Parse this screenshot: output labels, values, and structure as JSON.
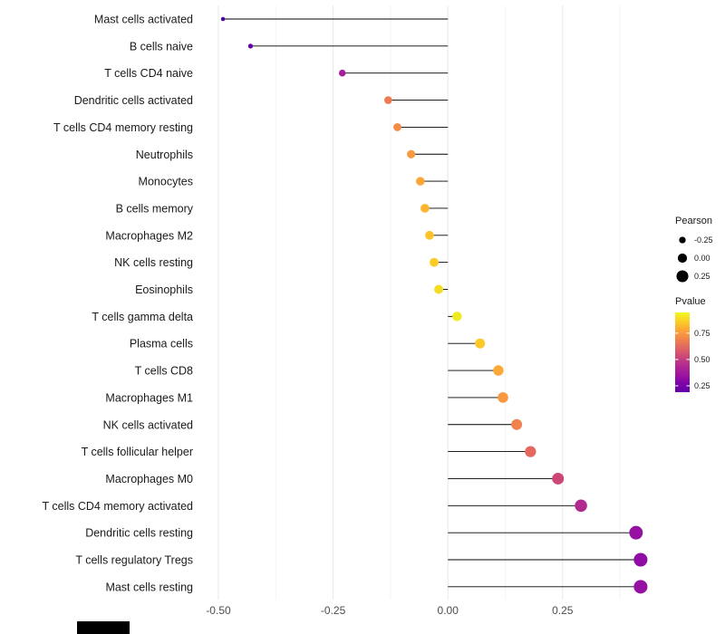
{
  "chart_data": {
    "type": "lollipop",
    "title": "",
    "xlabel": "",
    "ylabel": "",
    "x_axis": {
      "tick_labels": [
        "-0.50",
        "-0.25",
        "0.00",
        "0.25"
      ],
      "tick_values": [
        -0.5,
        -0.25,
        0.0,
        0.25
      ],
      "range": [
        -0.62,
        0.47
      ]
    },
    "grid": true,
    "rows": [
      {
        "label": "Mast cells activated",
        "pearson": -0.49,
        "color": "#4A03A0"
      },
      {
        "label": "B cells naive",
        "pearson": -0.43,
        "color": "#6100A7"
      },
      {
        "label": "T cells CD4 naive",
        "pearson": -0.23,
        "color": "#A62098"
      },
      {
        "label": "Dendritic cells activated",
        "pearson": -0.13,
        "color": "#EE7B51"
      },
      {
        "label": "T cells CD4 memory resting",
        "pearson": -0.11,
        "color": "#F28C46"
      },
      {
        "label": "Neutrophils",
        "pearson": -0.08,
        "color": "#F99A3E"
      },
      {
        "label": "Monocytes",
        "pearson": -0.06,
        "color": "#FCA636"
      },
      {
        "label": "B cells memory",
        "pearson": -0.05,
        "color": "#FDB52E"
      },
      {
        "label": "Macrophages M2",
        "pearson": -0.04,
        "color": "#FCC32A"
      },
      {
        "label": "NK cells resting",
        "pearson": -0.03,
        "color": "#FCCC26"
      },
      {
        "label": "Eosinophils",
        "pearson": -0.02,
        "color": "#F4DC24"
      },
      {
        "label": "T cells gamma delta",
        "pearson": 0.02,
        "color": "#F0EA21"
      },
      {
        "label": "Plasma cells",
        "pearson": 0.07,
        "color": "#FCC928"
      },
      {
        "label": "T cells CD8",
        "pearson": 0.11,
        "color": "#FCA937"
      },
      {
        "label": "Macrophages M1",
        "pearson": 0.12,
        "color": "#F9963F"
      },
      {
        "label": "NK cells activated",
        "pearson": 0.15,
        "color": "#F08250"
      },
      {
        "label": "T cells follicular helper",
        "pearson": 0.18,
        "color": "#E4685F"
      },
      {
        "label": "Macrophages M0",
        "pearson": 0.24,
        "color": "#CC4778"
      },
      {
        "label": "T cells CD4 memory activated",
        "pearson": 0.29,
        "color": "#B12A90"
      },
      {
        "label": "Dendritic cells resting",
        "pearson": 0.41,
        "color": "#9511A1"
      },
      {
        "label": "T cells regulatory  Tregs",
        "pearson": 0.42,
        "color": "#8F0DA4"
      },
      {
        "label": "Mast cells resting",
        "pearson": 0.42,
        "color": "#9511A1"
      }
    ],
    "legends": {
      "size": {
        "title": "Pearson",
        "entries": [
          {
            "label": "-0.25",
            "value": -0.25
          },
          {
            "label": "0.00",
            "value": 0.0
          },
          {
            "label": "0.25",
            "value": 0.25
          }
        ],
        "dot_color": "#000000"
      },
      "color": {
        "title": "Pvalue",
        "tick_labels": [
          "0.75",
          "0.50",
          "0.25"
        ],
        "gradient_top_to_bottom": [
          "#F0F921",
          "#FCCE25",
          "#FCA636",
          "#F1844B",
          "#E16462",
          "#CC4778",
          "#B12A90",
          "#9C179E",
          "#7E03A8",
          "#6100A7"
        ]
      }
    },
    "styles": {
      "background": "#FFFFFF",
      "stem_color": "#000000",
      "grid_major": "#E8E8E8",
      "grid_minor": "#F4F4F4",
      "label_color": "#1A1A1A",
      "tick_label_color": "#4D4D4D",
      "legend_title_color": "#1A1A1A"
    }
  },
  "bottom_fragment": {
    "color": "#000000"
  }
}
